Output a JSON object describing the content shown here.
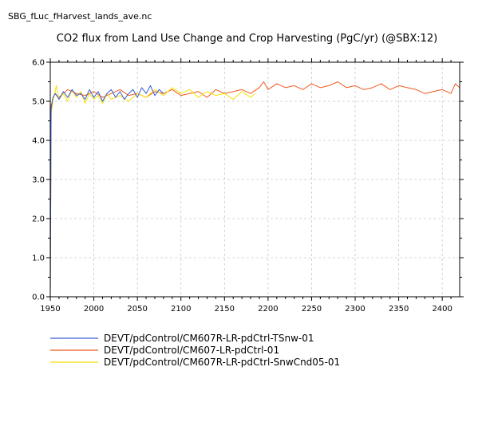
{
  "header": {
    "filename": "SBG_fLuc_fHarvest_lands_ave.nc"
  },
  "chart_data": {
    "type": "line",
    "title": "CO2 flux from Land Use Change and Crop Harvesting (PgC/yr) (@SBX:12)",
    "xlabel": "",
    "ylabel": "",
    "xlim": [
      1950,
      2420
    ],
    "ylim": [
      0,
      6
    ],
    "grid": true,
    "legend_position": "bottom-left",
    "x_ticks": [
      1950,
      2000,
      2050,
      2100,
      2150,
      2200,
      2250,
      2300,
      2350,
      2400
    ],
    "x_tick_labels": [
      "1950",
      "2000",
      "2050",
      "2100",
      "2150",
      "2200",
      "2250",
      "2300",
      "2350",
      "2400"
    ],
    "y_ticks": [
      0,
      1,
      2,
      3,
      4,
      5,
      6
    ],
    "y_tick_labels": [
      "0.0",
      "1.0",
      "2.0",
      "3.0",
      "4.0",
      "5.0",
      "6.0"
    ],
    "series": [
      {
        "name": "DEVT/pdControl/CM607R-LR-pdCtrl-TSnw-01",
        "color": "#3a5fd6",
        "x": [
          1950,
          1951,
          1953,
          1956,
          1960,
          1965,
          1970,
          1975,
          1980,
          1985,
          1990,
          1995,
          2000,
          2005,
          2010,
          2015,
          2020,
          2025,
          2030,
          2035,
          2040,
          2045,
          2050,
          2055,
          2060,
          2065,
          2070,
          2075,
          2080
        ],
        "y": [
          0.0,
          4.8,
          5.1,
          5.2,
          5.05,
          5.25,
          5.1,
          5.3,
          5.15,
          5.2,
          5.05,
          5.3,
          5.1,
          5.25,
          5.0,
          5.2,
          5.3,
          5.1,
          5.25,
          5.05,
          5.2,
          5.3,
          5.1,
          5.35,
          5.2,
          5.4,
          5.15,
          5.3,
          5.2
        ]
      },
      {
        "name": "DEVT/pdControl/CM607-LR-pdCtrl-01",
        "color": "#ee5a1e",
        "x": [
          1950,
          1951,
          1955,
          1960,
          1970,
          1980,
          1990,
          2000,
          2010,
          2020,
          2030,
          2040,
          2050,
          2060,
          2070,
          2080,
          2090,
          2100,
          2110,
          2120,
          2130,
          2140,
          2150,
          2160,
          2170,
          2180,
          2190,
          2195,
          2200,
          2210,
          2220,
          2230,
          2240,
          2250,
          2260,
          2270,
          2280,
          2290,
          2300,
          2310,
          2320,
          2330,
          2340,
          2350,
          2360,
          2370,
          2380,
          2390,
          2400,
          2410,
          2415,
          2420
        ],
        "y": [
          0.0,
          4.9,
          5.2,
          5.1,
          5.3,
          5.2,
          5.15,
          5.25,
          5.1,
          5.2,
          5.3,
          5.15,
          5.2,
          5.1,
          5.25,
          5.2,
          5.3,
          5.15,
          5.2,
          5.25,
          5.1,
          5.3,
          5.2,
          5.25,
          5.3,
          5.2,
          5.35,
          5.5,
          5.3,
          5.45,
          5.35,
          5.4,
          5.3,
          5.45,
          5.35,
          5.4,
          5.5,
          5.35,
          5.4,
          5.3,
          5.35,
          5.45,
          5.3,
          5.4,
          5.35,
          5.3,
          5.2,
          5.25,
          5.3,
          5.2,
          5.45,
          5.35
        ]
      },
      {
        "name": "DEVT/pdControl/CM607R-LR-pdCtrl-SnwCnd05-01",
        "color": "#f5e000",
        "x": [
          1950,
          1951,
          1953,
          1957,
          1960,
          1965,
          1970,
          1975,
          1980,
          1985,
          1990,
          1995,
          2000,
          2005,
          2010,
          2015,
          2020,
          2030,
          2040,
          2050,
          2060,
          2070,
          2080,
          2090,
          2100,
          2110,
          2120,
          2130,
          2140,
          2150,
          2160,
          2170,
          2180,
          2185
        ],
        "y": [
          0.0,
          4.7,
          5.0,
          5.4,
          5.05,
          5.2,
          5.0,
          5.3,
          5.1,
          5.25,
          4.95,
          5.2,
          5.05,
          5.15,
          4.95,
          5.2,
          5.05,
          5.15,
          5.0,
          5.2,
          5.1,
          5.3,
          5.15,
          5.35,
          5.2,
          5.3,
          5.1,
          5.25,
          5.15,
          5.2,
          5.05,
          5.25,
          5.1,
          5.2
        ]
      }
    ]
  }
}
